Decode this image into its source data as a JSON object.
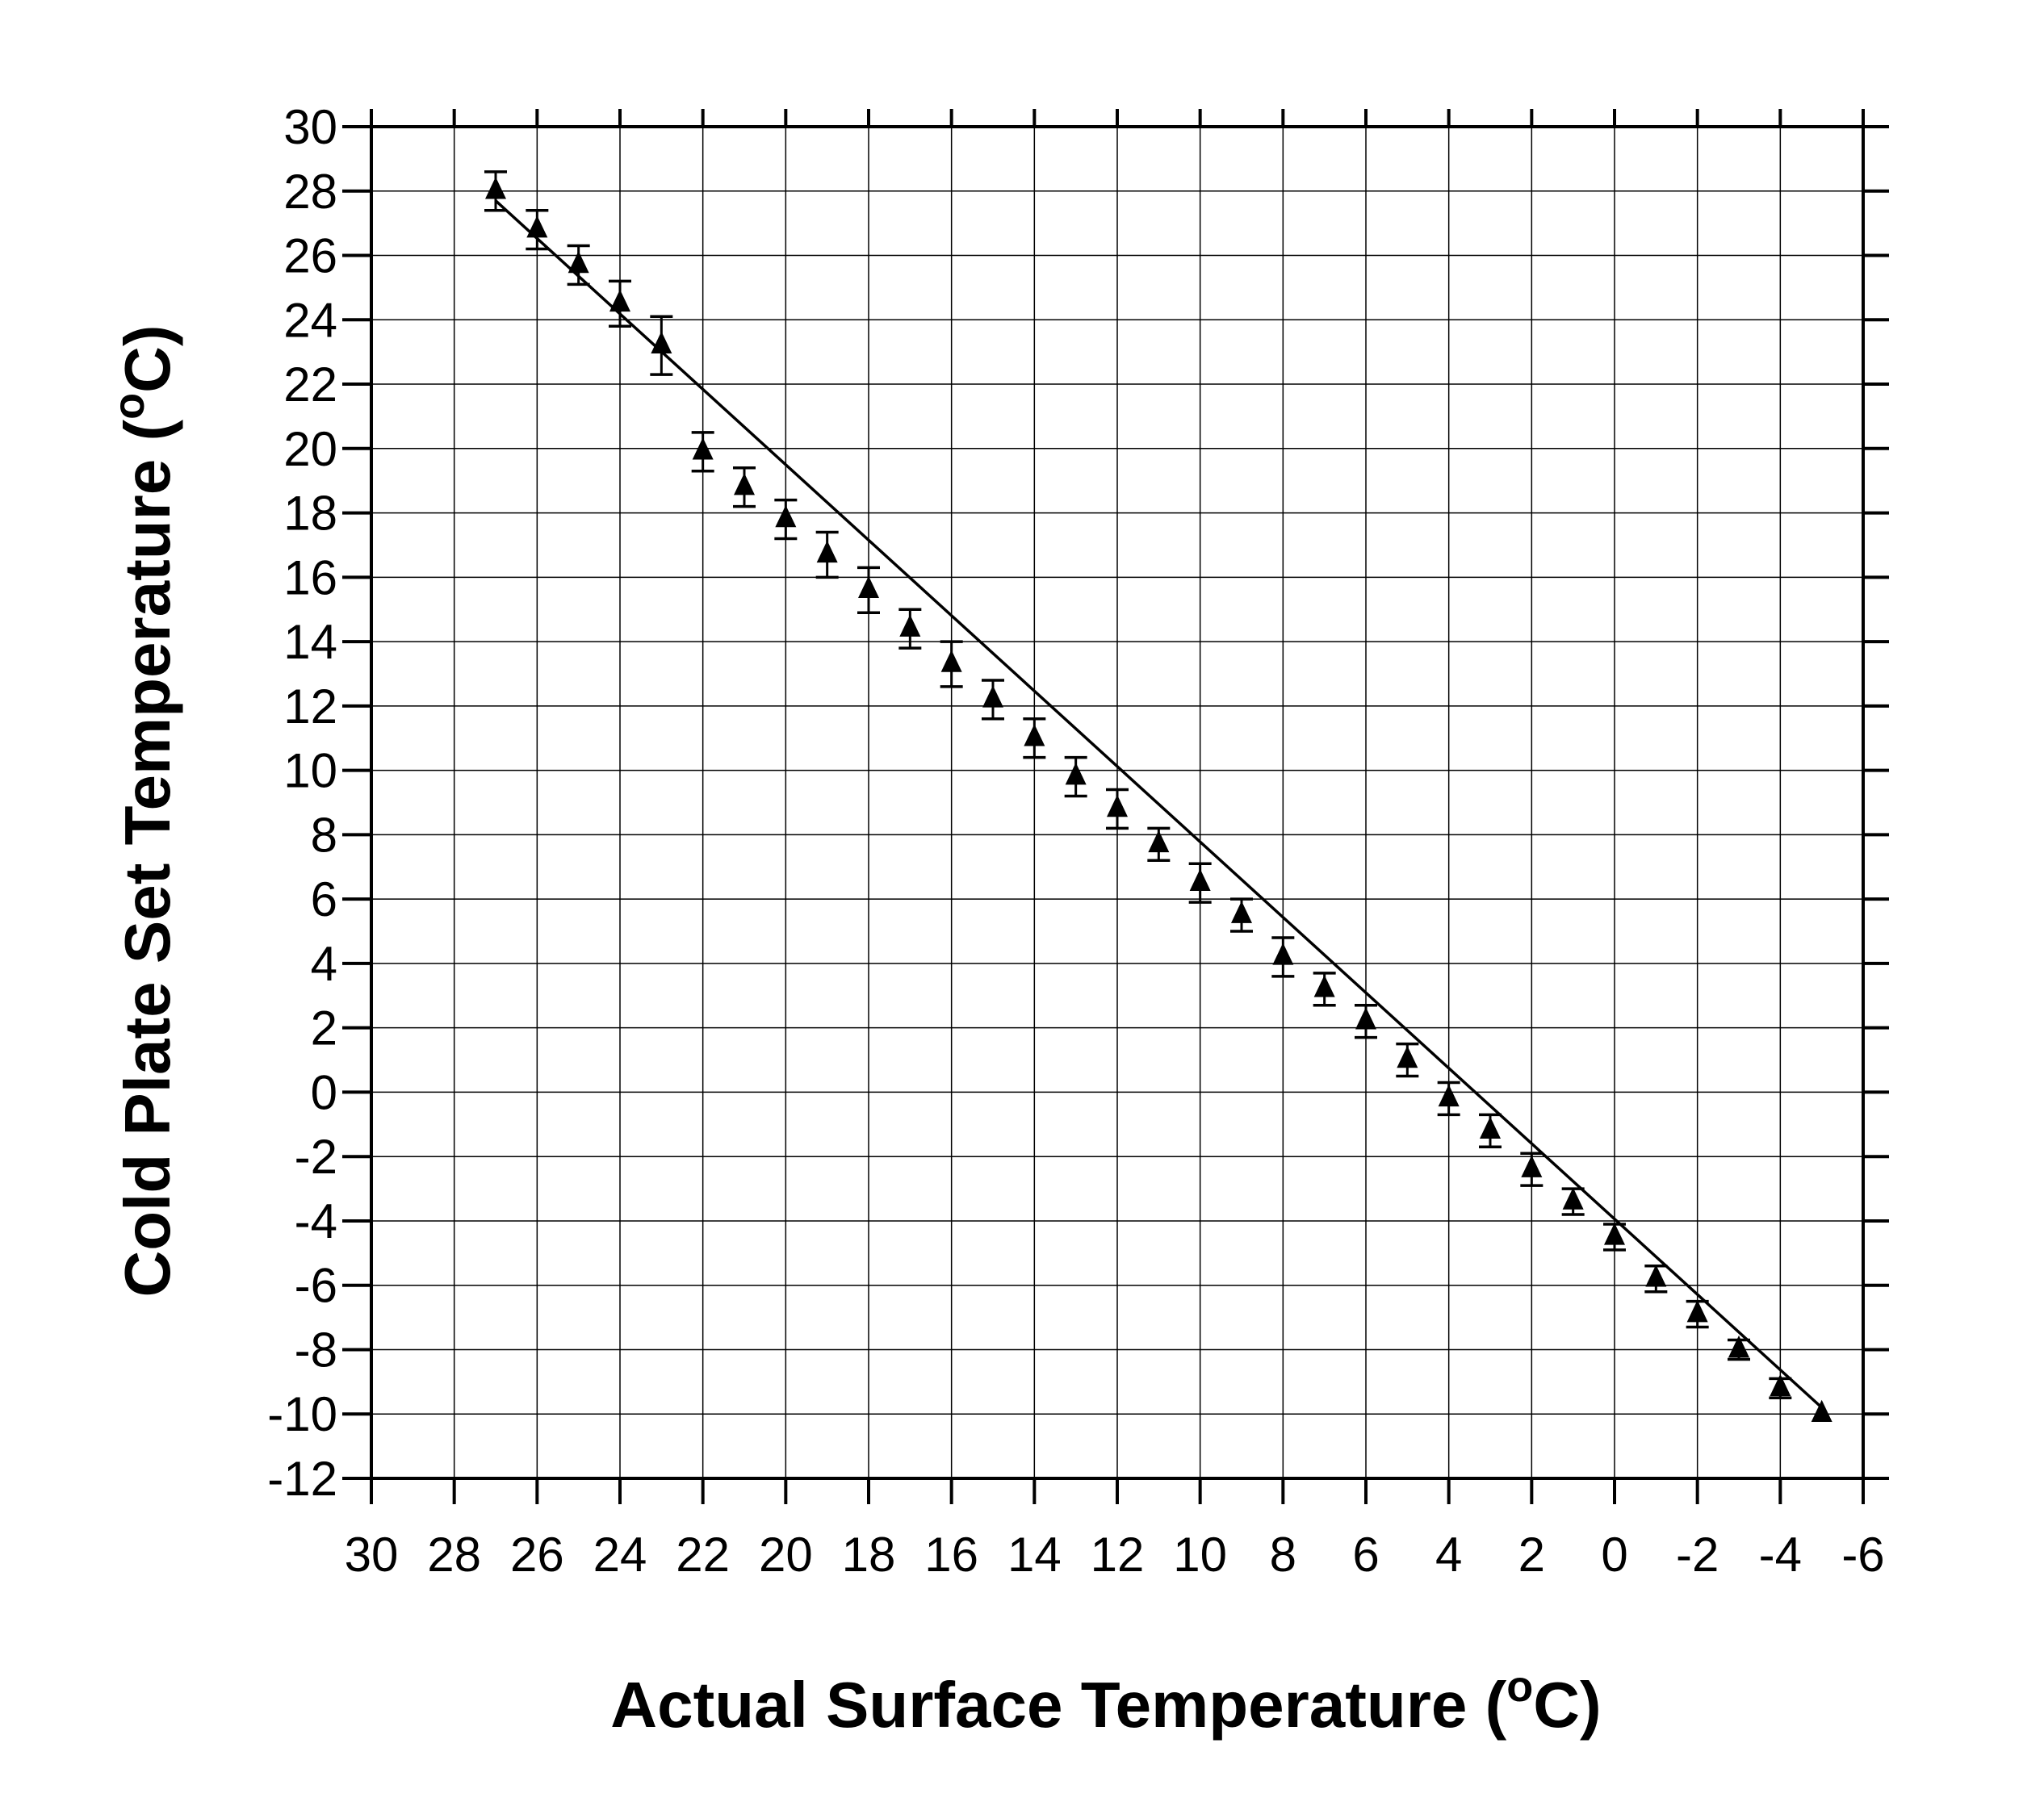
{
  "chart_data": {
    "type": "scatter",
    "xlabel": "Actual Surface Temperature (",
    "xlabel_sup": "o",
    "xlabel_end": "C)",
    "ylabel": "Cold Plate Set Temperature (",
    "ylabel_sup": "o",
    "ylabel_end": "C)",
    "xlim": [
      30,
      -6
    ],
    "ylim": [
      -12,
      30
    ],
    "x_reversed": true,
    "xticks": [
      30,
      28,
      26,
      24,
      22,
      20,
      18,
      16,
      14,
      12,
      10,
      8,
      6,
      4,
      2,
      0,
      -2,
      -4,
      -6
    ],
    "yticks": [
      30,
      28,
      26,
      24,
      22,
      20,
      18,
      16,
      14,
      12,
      10,
      8,
      6,
      4,
      2,
      0,
      -2,
      -4,
      -6,
      -8,
      -10,
      -12
    ],
    "grid": true,
    "marker": "triangle",
    "series": [
      {
        "points": [
          {
            "x": 27.0,
            "y": 28.0,
            "err": 0.6
          },
          {
            "x": 26.0,
            "y": 26.8,
            "err": 0.6
          },
          {
            "x": 25.0,
            "y": 25.7,
            "err": 0.6
          },
          {
            "x": 24.0,
            "y": 24.5,
            "err": 0.7
          },
          {
            "x": 23.0,
            "y": 23.2,
            "err": 0.9
          },
          {
            "x": 22.0,
            "y": 19.9,
            "err": 0.6
          },
          {
            "x": 21.0,
            "y": 18.8,
            "err": 0.6
          },
          {
            "x": 20.0,
            "y": 17.8,
            "err": 0.6
          },
          {
            "x": 19.0,
            "y": 16.7,
            "err": 0.7
          },
          {
            "x": 18.0,
            "y": 15.6,
            "err": 0.7
          },
          {
            "x": 17.0,
            "y": 14.4,
            "err": 0.6
          },
          {
            "x": 16.0,
            "y": 13.3,
            "err": 0.7
          },
          {
            "x": 15.0,
            "y": 12.2,
            "err": 0.6
          },
          {
            "x": 14.0,
            "y": 11.0,
            "err": 0.6
          },
          {
            "x": 13.0,
            "y": 9.8,
            "err": 0.6
          },
          {
            "x": 12.0,
            "y": 8.8,
            "err": 0.6
          },
          {
            "x": 11.0,
            "y": 7.7,
            "err": 0.5
          },
          {
            "x": 10.0,
            "y": 6.5,
            "err": 0.6
          },
          {
            "x": 9.0,
            "y": 5.5,
            "err": 0.5
          },
          {
            "x": 8.0,
            "y": 4.2,
            "err": 0.6
          },
          {
            "x": 7.0,
            "y": 3.2,
            "err": 0.5
          },
          {
            "x": 6.0,
            "y": 2.2,
            "err": 0.5
          },
          {
            "x": 5.0,
            "y": 1.0,
            "err": 0.5
          },
          {
            "x": 4.0,
            "y": -0.2,
            "err": 0.5
          },
          {
            "x": 3.0,
            "y": -1.2,
            "err": 0.5
          },
          {
            "x": 2.0,
            "y": -2.4,
            "err": 0.5
          },
          {
            "x": 1.0,
            "y": -3.4,
            "err": 0.4
          },
          {
            "x": 0.0,
            "y": -4.5,
            "err": 0.4
          },
          {
            "x": -1.0,
            "y": -5.8,
            "err": 0.4
          },
          {
            "x": -2.0,
            "y": -6.9,
            "err": 0.4
          },
          {
            "x": -3.0,
            "y": -8.0,
            "err": 0.3
          },
          {
            "x": -4.0,
            "y": -9.2,
            "err": 0.3
          },
          {
            "x": -5.0,
            "y": -10.0,
            "err": 0.0
          }
        ]
      }
    ],
    "fit_line": {
      "x": [
        27.0,
        -5.0
      ],
      "y": [
        27.7,
        -9.8
      ]
    }
  }
}
